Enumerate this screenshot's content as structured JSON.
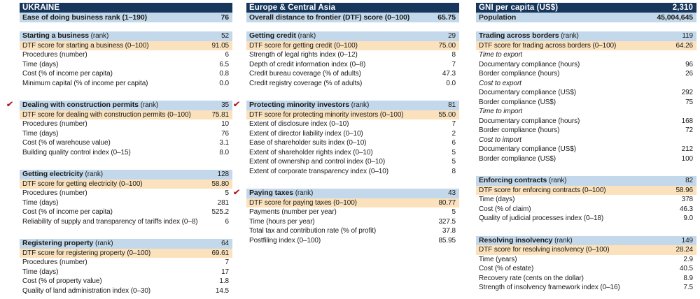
{
  "report": {
    "country": "UKRAINE",
    "region": "Europe & Central Asia"
  },
  "colors": {
    "dark_blue": "#16365c",
    "light_blue": "#c3d9eb",
    "dtf_orange": "#fbe2bd",
    "check_red": "#b11a21"
  },
  "icons": {
    "checkmark": "✔"
  },
  "columns": [
    {
      "header_bar": {
        "title": "UKRAINE",
        "value": ""
      },
      "sub_bar": {
        "label": "Ease of doing business rank (1–190)",
        "value": "76"
      },
      "sections": [
        {
          "title": "Starting a business",
          "title_suffix": "(rank)",
          "rank": "52",
          "checked": false,
          "rows": [
            {
              "label": "DTF score for starting a business (0–100)",
              "value": "91.05",
              "style": "dtf"
            },
            {
              "label": "Procedures (number)",
              "value": "6",
              "style": "plain"
            },
            {
              "label": "Time (days)",
              "value": "6.5",
              "style": "plain"
            },
            {
              "label": "Cost (% of income per capita)",
              "value": "0.8",
              "style": "plain"
            },
            {
              "label": "Minimum capital (% of income per capita)",
              "value": "0.0",
              "style": "plain"
            }
          ]
        },
        {
          "title": "Dealing with construction permits",
          "title_suffix": "(rank)",
          "rank": "35",
          "checked": true,
          "rows": [
            {
              "label": "DTF score for dealing with construction permits (0–100)",
              "value": "75.81",
              "style": "dtf"
            },
            {
              "label": "Procedures (number)",
              "value": "10",
              "style": "plain"
            },
            {
              "label": "Time (days)",
              "value": "76",
              "style": "plain"
            },
            {
              "label": "Cost (% of warehouse value)",
              "value": "3.1",
              "style": "plain"
            },
            {
              "label": "Building quality control index (0–15)",
              "value": "8.0",
              "style": "plain"
            }
          ]
        },
        {
          "title": "Getting electricity",
          "title_suffix": "(rank)",
          "rank": "128",
          "checked": false,
          "rows": [
            {
              "label": "DTF score for getting electricity (0–100)",
              "value": "58.80",
              "style": "dtf"
            },
            {
              "label": "Procedures (number)",
              "value": "5",
              "style": "plain"
            },
            {
              "label": "Time (days)",
              "value": "281",
              "style": "plain"
            },
            {
              "label": "Cost (% of income per capita)",
              "value": "525.2",
              "style": "plain"
            },
            {
              "label": "Reliability of supply and transparency of tariffs index (0–8)",
              "value": "6",
              "style": "plain"
            }
          ]
        },
        {
          "title": "Registering property",
          "title_suffix": "(rank)",
          "rank": "64",
          "checked": false,
          "rows": [
            {
              "label": "DTF score for registering property (0–100)",
              "value": "69.61",
              "style": "dtf"
            },
            {
              "label": "Procedures (number)",
              "value": "7",
              "style": "plain"
            },
            {
              "label": "Time (days)",
              "value": "17",
              "style": "plain"
            },
            {
              "label": "Cost (% of property value)",
              "value": "1.8",
              "style": "plain"
            },
            {
              "label": "Quality of land administration index (0–30)",
              "value": "14.5",
              "style": "plain"
            }
          ]
        }
      ]
    },
    {
      "header_bar": {
        "title": "Europe & Central Asia",
        "value": ""
      },
      "sub_bar": {
        "label": "Overall distance to frontier (DTF) score (0–100)",
        "value": "65.75"
      },
      "sections": [
        {
          "title": "Getting credit",
          "title_suffix": "(rank)",
          "rank": "29",
          "checked": false,
          "rows": [
            {
              "label": "DTF score for getting credit (0–100)",
              "value": "75.00",
              "style": "dtf"
            },
            {
              "label": "Strength of legal rights index (0–12)",
              "value": "8",
              "style": "plain"
            },
            {
              "label": "Depth of credit information index (0–8)",
              "value": "7",
              "style": "plain"
            },
            {
              "label": "Credit bureau coverage (% of adults)",
              "value": "47.3",
              "style": "plain"
            },
            {
              "label": "Credit registry coverage (% of adults)",
              "value": "0.0",
              "style": "plain"
            }
          ]
        },
        {
          "title": "Protecting minority investors",
          "title_suffix": "(rank)",
          "rank": "81",
          "checked": true,
          "rows": [
            {
              "label": "DTF score for protecting minority investors (0–100)",
              "value": "55.00",
              "style": "dtf"
            },
            {
              "label": "Extent of disclosure index (0–10)",
              "value": "7",
              "style": "plain"
            },
            {
              "label": "Extent of director liability index (0–10)",
              "value": "2",
              "style": "plain"
            },
            {
              "label": "Ease of shareholder suits index (0–10)",
              "value": "6",
              "style": "plain"
            },
            {
              "label": "Extent of shareholder rights index (0–10)",
              "value": "5",
              "style": "plain"
            },
            {
              "label": "Extent of ownership and control index (0–10)",
              "value": "5",
              "style": "plain"
            },
            {
              "label": "Extent of corporate transparency index (0–10)",
              "value": "8",
              "style": "plain"
            }
          ]
        },
        {
          "title": "Paying taxes",
          "title_suffix": "(rank)",
          "rank": "43",
          "checked": true,
          "rows": [
            {
              "label": "DTF score for paying taxes (0–100)",
              "value": "80.77",
              "style": "dtf"
            },
            {
              "label": "Payments (number per year)",
              "value": "5",
              "style": "plain"
            },
            {
              "label": "Time (hours per year)",
              "value": "327.5",
              "style": "plain"
            },
            {
              "label": "Total tax and contribution rate (% of profit)",
              "value": "37.8",
              "style": "plain"
            },
            {
              "label": "Postfiling index (0–100)",
              "value": "85.95",
              "style": "plain"
            }
          ]
        }
      ]
    },
    {
      "header_bar": {
        "title": "GNI per capita (US$)",
        "value": "2,310"
      },
      "sub_bar": {
        "label": "Population",
        "value": "45,004,645"
      },
      "sections": [
        {
          "title": "Trading across borders",
          "title_suffix": "(rank)",
          "rank": "119",
          "checked": false,
          "rows": [
            {
              "label": "DTF score for trading across borders (0–100)",
              "value": "64.26",
              "style": "dtf"
            },
            {
              "label": "Time to export",
              "value": "",
              "style": "group"
            },
            {
              "label": "Documentary compliance (hours)",
              "value": "96",
              "style": "plain"
            },
            {
              "label": "Border compliance (hours)",
              "value": "26",
              "style": "plain"
            },
            {
              "label": "Cost to export",
              "value": "",
              "style": "group"
            },
            {
              "label": "Documentary compliance (US$)",
              "value": "292",
              "style": "plain"
            },
            {
              "label": "Border compliance (US$)",
              "value": "75",
              "style": "plain"
            },
            {
              "label": "Time to import",
              "value": "",
              "style": "group"
            },
            {
              "label": "Documentary compliance (hours)",
              "value": "168",
              "style": "plain"
            },
            {
              "label": "Border compliance (hours)",
              "value": "72",
              "style": "plain"
            },
            {
              "label": "Cost to import",
              "value": "",
              "style": "group"
            },
            {
              "label": "Documentary compliance (US$)",
              "value": "212",
              "style": "plain"
            },
            {
              "label": "Border compliance (US$)",
              "value": "100",
              "style": "plain"
            }
          ]
        },
        {
          "title": "Enforcing contracts",
          "title_suffix": "(rank)",
          "rank": "82",
          "checked": false,
          "rows": [
            {
              "label": "DTF score for enforcing contracts (0–100)",
              "value": "58.96",
              "style": "dtf"
            },
            {
              "label": "Time (days)",
              "value": "378",
              "style": "plain"
            },
            {
              "label": "Cost (% of claim)",
              "value": "46.3",
              "style": "plain"
            },
            {
              "label": "Quality of judicial processes index (0–18)",
              "value": "9.0",
              "style": "plain"
            }
          ]
        },
        {
          "title": "Resolving insolvency",
          "title_suffix": "(rank)",
          "rank": "149",
          "checked": false,
          "rows": [
            {
              "label": "DTF score for resolving insolvency (0–100)",
              "value": "28.24",
              "style": "dtf"
            },
            {
              "label": "Time (years)",
              "value": "2.9",
              "style": "plain"
            },
            {
              "label": "Cost (% of estate)",
              "value": "40.5",
              "style": "plain"
            },
            {
              "label": "Recovery rate (cents on the dollar)",
              "value": "8.9",
              "style": "plain"
            },
            {
              "label": "Strength of insolvency framework index (0–16)",
              "value": "7.5",
              "style": "plain"
            }
          ]
        }
      ]
    }
  ]
}
